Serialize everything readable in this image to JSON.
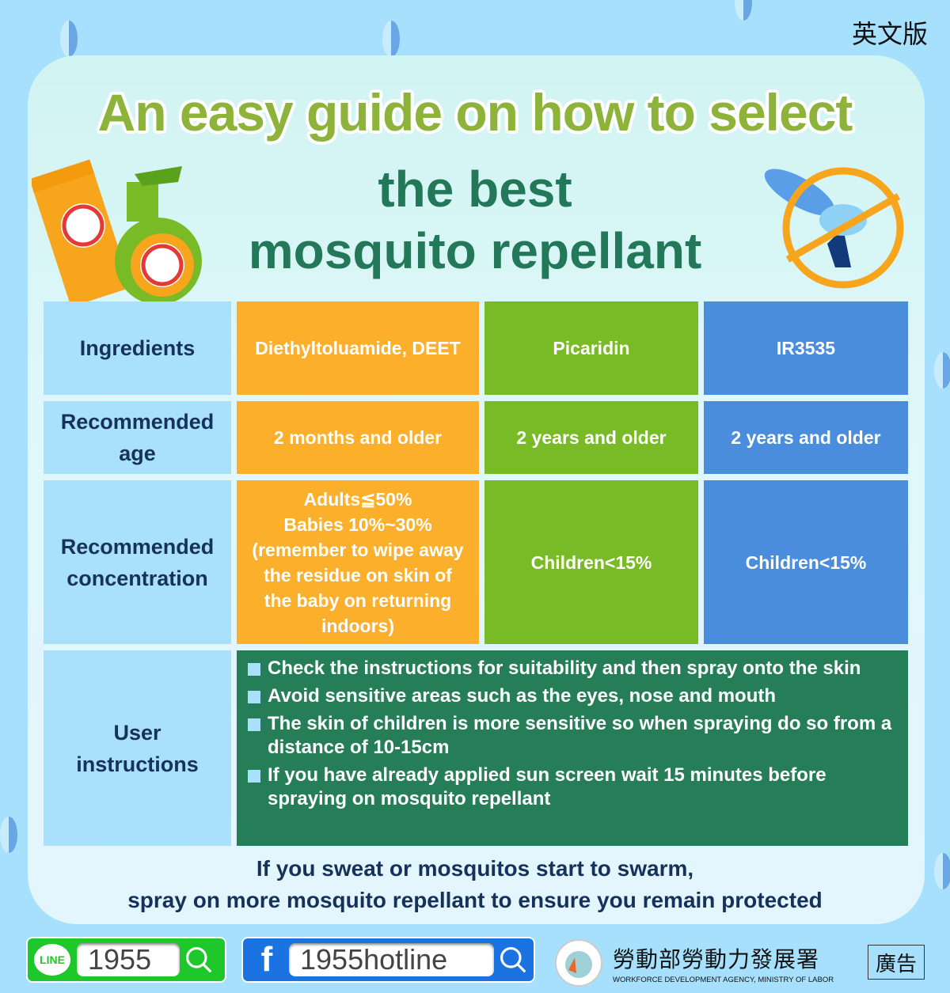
{
  "lang_label": "英文版",
  "title": {
    "line1": "An easy guide on how to select",
    "line2": "the best",
    "line3": "mosquito repellant"
  },
  "table": {
    "rows": [
      {
        "label": "Ingredients",
        "cells": [
          "Diethyltoluamide, DEET",
          "Picaridin",
          "IR3535"
        ]
      },
      {
        "label": "Recommended age",
        "cells": [
          "2 months and older",
          "2 years and older",
          "2 years and older"
        ]
      },
      {
        "label": "Recommended concentration",
        "cells": [
          "Adults≦50%\nBabies 10%~30%\n(remember to wipe away the residue on skin of the baby on returning indoors)",
          "Children<15%",
          "Children<15%"
        ]
      }
    ],
    "instructions_label": "User instructions",
    "instructions": [
      "Check the instructions for suitability and then spray onto the skin",
      "Avoid sensitive areas such as the eyes, nose and mouth",
      "The skin of children is more sensitive so when spraying do so from a distance of 10-15cm",
      "If you have already applied sun screen wait 15 minutes before spraying on mosquito repellant"
    ]
  },
  "footer_note": {
    "line1": "If you sweat or mosquitos start to swarm,",
    "line2": "spray on more mosquito repellant to ensure you remain protected"
  },
  "bottom": {
    "line": {
      "logo": "LINE",
      "id": "1955",
      "color": "#1ec72a"
    },
    "facebook": {
      "logo": "f",
      "id": "1955hotline",
      "color": "#1a73e0"
    },
    "agency_zh": "勞動部勞動力發展署",
    "agency_en": "WORKFORCE DEVELOPMENT AGENCY, MINISTRY OF LABOR",
    "ad_label": "廣告"
  },
  "colors": {
    "orange": "#fbaf2a",
    "green": "#79bb26",
    "blue": "#4a8ddc",
    "dark_green": "#267e58",
    "label": "#a9e0fb"
  }
}
